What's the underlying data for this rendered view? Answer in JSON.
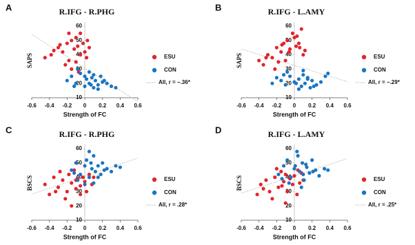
{
  "chart_data": [
    {
      "type": "scatter",
      "panel_label": "A",
      "title": "R.IFG - R.PHG",
      "x_label": "Strength of FC",
      "y_label": "SAPS",
      "xlim": [
        -0.6,
        0.6
      ],
      "ylim": [
        10,
        63
      ],
      "xticks": [
        -0.6,
        -0.4,
        -0.2,
        0,
        0.2,
        0.4,
        0.6
      ],
      "yticks": [
        10,
        20,
        30,
        40,
        50,
        60
      ],
      "fit_label": "All, r = −.36*",
      "series": [
        {
          "name": "ESU",
          "color": "#e3242b",
          "x": [
            -0.45,
            -0.38,
            -0.3,
            -0.25,
            -0.2,
            -0.18,
            -0.15,
            -0.12,
            -0.1,
            -0.08,
            -0.05,
            -0.02,
            0.0,
            0.02,
            0.05,
            -0.22,
            -0.28,
            -0.15,
            -0.1,
            -0.05,
            0.03,
            -0.35,
            -0.18,
            -0.07
          ],
          "values": [
            38,
            40,
            45,
            42,
            48,
            36,
            50,
            44,
            52,
            46,
            55,
            48,
            42,
            38,
            45,
            33,
            47,
            30,
            35,
            40,
            50,
            43,
            55,
            28
          ]
        },
        {
          "name": "CON",
          "color": "#1b75c2",
          "x": [
            -0.2,
            -0.15,
            -0.1,
            -0.05,
            0.0,
            0.02,
            0.05,
            0.08,
            0.1,
            0.12,
            0.15,
            0.18,
            0.2,
            0.25,
            0.3,
            0.35,
            -0.08,
            0.05,
            0.1,
            0.15,
            0.22,
            -0.12,
            0.0,
            0.07
          ],
          "values": [
            22,
            25,
            20,
            27,
            18,
            23,
            20,
            24,
            17,
            22,
            19,
            25,
            21,
            20,
            18,
            17,
            30,
            28,
            26,
            16,
            22,
            18,
            25,
            19
          ]
        }
      ]
    },
    {
      "type": "scatter",
      "panel_label": "B",
      "title": "R.IFG - L.AMY",
      "x_label": "Strength of FC",
      "y_label": "SAPS",
      "xlim": [
        -0.6,
        0.6
      ],
      "ylim": [
        10,
        63
      ],
      "xticks": [
        -0.6,
        -0.4,
        -0.2,
        0,
        0.2,
        0.4,
        0.6
      ],
      "yticks": [
        10,
        20,
        30,
        40,
        50,
        60
      ],
      "fit_label": "All, r = −.29*",
      "series": [
        {
          "name": "ESU",
          "color": "#e3242b",
          "x": [
            -0.4,
            -0.35,
            -0.3,
            -0.25,
            -0.2,
            -0.15,
            -0.12,
            -0.1,
            -0.08,
            -0.05,
            -0.02,
            0.0,
            0.02,
            0.05,
            0.08,
            0.1,
            -0.22,
            -0.18,
            -0.06,
            0.03,
            0.06,
            -0.32,
            -0.14,
            0.12
          ],
          "values": [
            36,
            33,
            40,
            38,
            45,
            42,
            48,
            36,
            50,
            44,
            55,
            52,
            46,
            48,
            58,
            40,
            30,
            35,
            42,
            53,
            45,
            38,
            47,
            43
          ]
        },
        {
          "name": "CON",
          "color": "#1b75c2",
          "x": [
            -0.25,
            -0.2,
            -0.15,
            -0.1,
            -0.05,
            0.0,
            0.05,
            0.08,
            0.1,
            0.12,
            0.15,
            0.18,
            0.2,
            0.25,
            0.3,
            0.35,
            -0.08,
            0.05,
            0.1,
            0.15,
            0.22,
            -0.12,
            0.02,
            0.38
          ],
          "values": [
            20,
            24,
            22,
            19,
            25,
            21,
            23,
            18,
            26,
            20,
            24,
            17,
            22,
            19,
            21,
            25,
            28,
            16,
            29,
            23,
            18,
            26,
            20,
            27
          ]
        }
      ]
    },
    {
      "type": "scatter",
      "panel_label": "C",
      "title": "R.IFG - R.PHG",
      "x_label": "Strength of FC",
      "y_label": "BSCS",
      "xlim": [
        -0.6,
        0.6
      ],
      "ylim": [
        10,
        63
      ],
      "xticks": [
        -0.6,
        -0.4,
        -0.2,
        0,
        0.2,
        0.4,
        0.6
      ],
      "yticks": [
        10,
        20,
        30,
        40,
        50,
        60
      ],
      "fit_label": "All, r = .28*",
      "series": [
        {
          "name": "ESU",
          "color": "#e3242b",
          "x": [
            -0.45,
            -0.4,
            -0.35,
            -0.3,
            -0.25,
            -0.2,
            -0.18,
            -0.15,
            -0.12,
            -0.1,
            -0.08,
            -0.05,
            -0.02,
            0.0,
            0.02,
            0.05,
            0.08,
            -0.22,
            -0.28,
            -0.15,
            -0.1,
            -0.05,
            0.1,
            -0.33
          ],
          "values": [
            35,
            28,
            40,
            33,
            38,
            30,
            42,
            36,
            45,
            32,
            39,
            34,
            40,
            37,
            30,
            42,
            35,
            25,
            44,
            20,
            38,
            28,
            40,
            30
          ]
        },
        {
          "name": "CON",
          "color": "#1b75c2",
          "x": [
            -0.15,
            -0.1,
            -0.05,
            0.0,
            0.02,
            0.05,
            0.08,
            0.1,
            0.12,
            0.15,
            0.18,
            0.2,
            0.25,
            0.3,
            0.35,
            -0.08,
            0.05,
            0.1,
            0.15,
            0.22,
            -0.12,
            0.0,
            0.07,
            0.4
          ],
          "values": [
            45,
            50,
            42,
            48,
            52,
            40,
            46,
            55,
            44,
            48,
            42,
            50,
            46,
            44,
            48,
            38,
            58,
            36,
            40,
            45,
            43,
            35,
            50,
            47
          ]
        }
      ]
    },
    {
      "type": "scatter",
      "panel_label": "D",
      "title": "R.IFG - L.AMY",
      "x_label": "Strength of FC",
      "y_label": "BSCS",
      "xlim": [
        -0.6,
        0.6
      ],
      "ylim": [
        10,
        63
      ],
      "xticks": [
        -0.6,
        -0.4,
        -0.2,
        0,
        0.2,
        0.4,
        0.6
      ],
      "yticks": [
        10,
        20,
        30,
        40,
        50,
        60
      ],
      "fit_label": "All, r = .25*",
      "series": [
        {
          "name": "ESU",
          "color": "#e3242b",
          "x": [
            -0.42,
            -0.38,
            -0.32,
            -0.28,
            -0.22,
            -0.18,
            -0.15,
            -0.12,
            -0.1,
            -0.08,
            -0.05,
            -0.02,
            0.0,
            0.03,
            0.06,
            0.08,
            -0.25,
            -0.2,
            -0.14,
            -0.06,
            0.1,
            -0.35,
            -0.1,
            0.04
          ],
          "values": [
            28,
            35,
            38,
            30,
            40,
            33,
            44,
            37,
            42,
            30,
            39,
            35,
            41,
            28,
            36,
            43,
            25,
            46,
            34,
            40,
            38,
            32,
            22,
            45
          ]
        },
        {
          "name": "CON",
          "color": "#1b75c2",
          "x": [
            -0.18,
            -0.12,
            -0.08,
            -0.04,
            0.0,
            0.03,
            0.06,
            0.09,
            0.11,
            0.14,
            0.17,
            0.2,
            0.24,
            0.28,
            0.34,
            -0.06,
            0.04,
            0.08,
            0.13,
            0.21,
            -0.14,
            0.01,
            0.1,
            0.38
          ],
          "values": [
            42,
            48,
            52,
            40,
            46,
            58,
            44,
            50,
            38,
            47,
            43,
            52,
            45,
            41,
            46,
            36,
            55,
            33,
            49,
            44,
            39,
            48,
            42,
            45
          ]
        }
      ]
    }
  ]
}
